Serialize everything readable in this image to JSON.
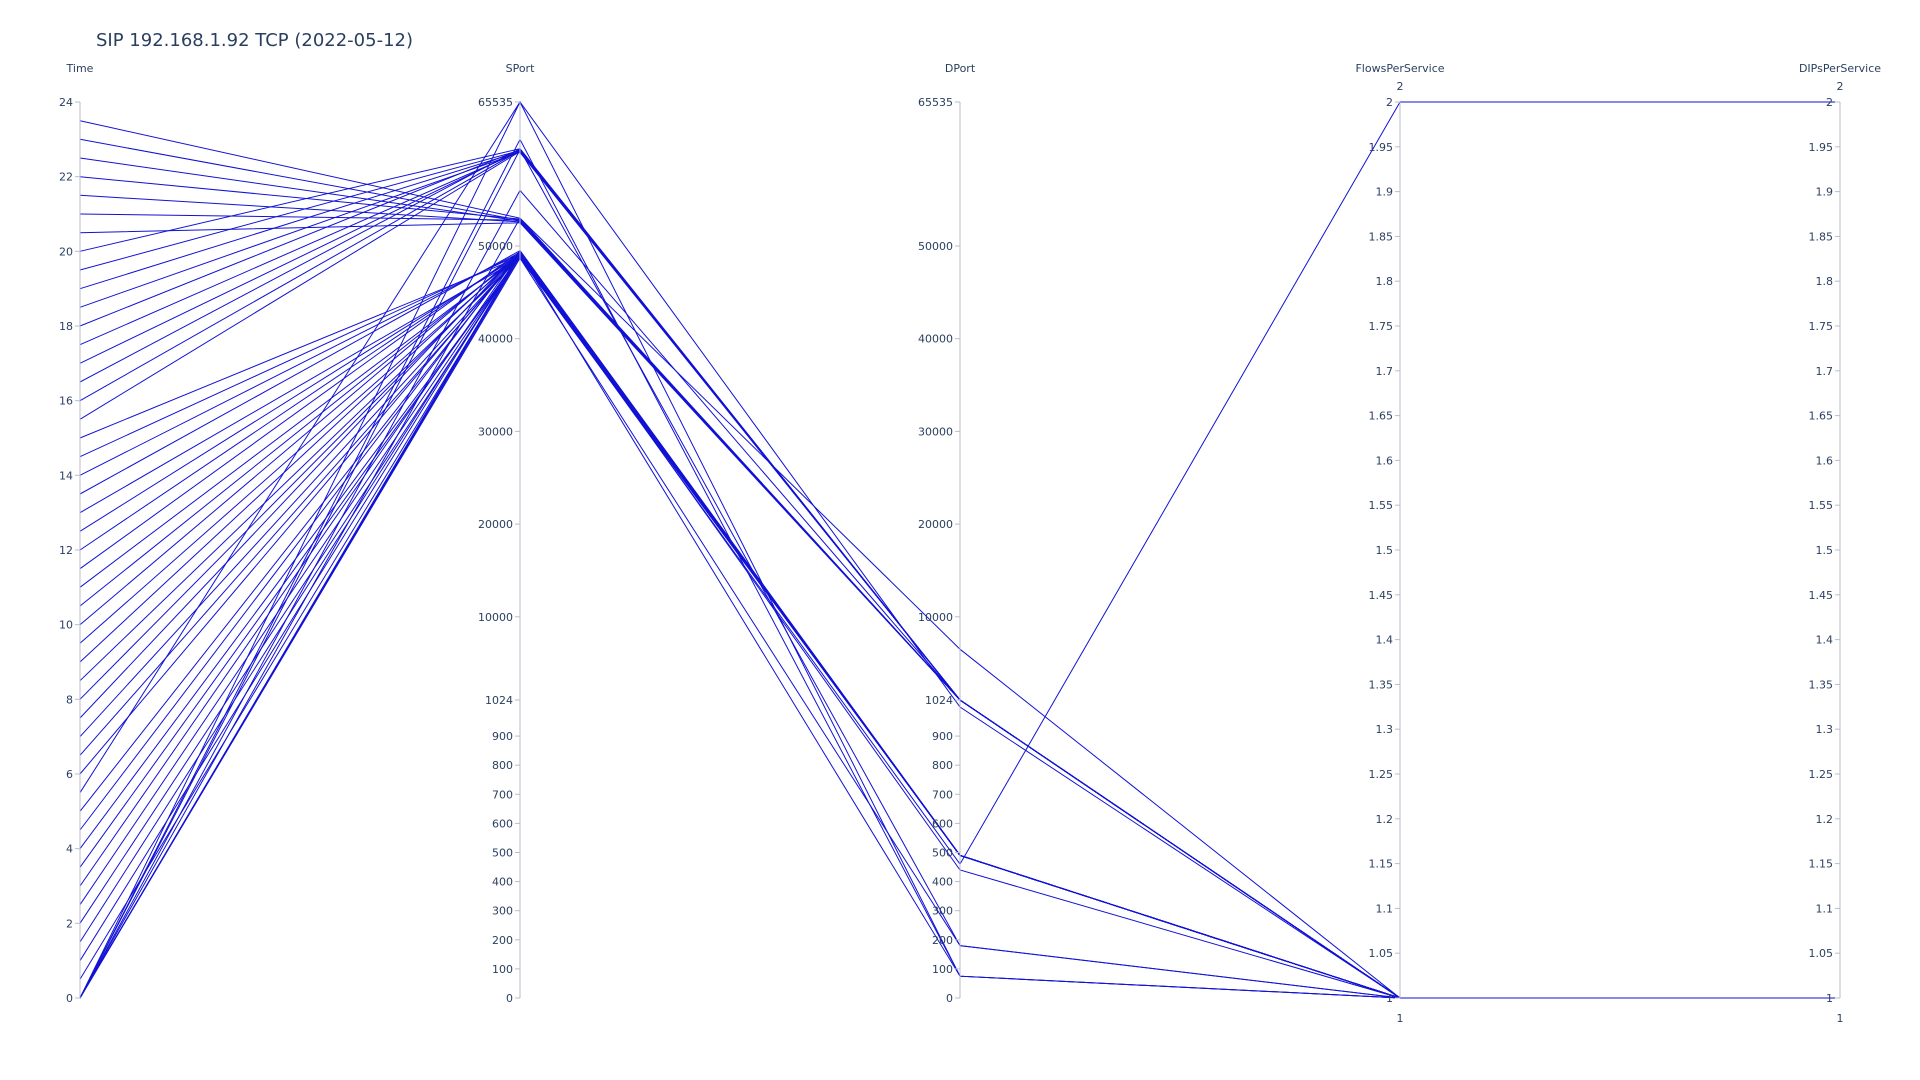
{
  "title": "SIP 192.168.1.92 TCP (2022-05-12)",
  "chart_data": {
    "type": "parallel_coordinates",
    "title": "SIP 192.168.1.92 TCP (2022-05-12)",
    "line_color": "#1212d6",
    "dimensions": [
      {
        "name": "Time",
        "ticks": [
          "0",
          "2",
          "4",
          "6",
          "8",
          "10",
          "12",
          "14",
          "16",
          "18",
          "20",
          "22",
          "24"
        ],
        "range": [
          0,
          24
        ]
      },
      {
        "name": "SPort",
        "ticks": [
          "0",
          "100",
          "200",
          "300",
          "400",
          "500",
          "600",
          "700",
          "800",
          "900",
          "1024",
          "10000",
          "20000",
          "30000",
          "40000",
          "50000",
          "65535"
        ],
        "range": [
          0,
          65535
        ]
      },
      {
        "name": "DPort",
        "ticks": [
          "0",
          "100",
          "200",
          "300",
          "400",
          "500",
          "600",
          "700",
          "800",
          "900",
          "1024",
          "10000",
          "20000",
          "30000",
          "40000",
          "50000",
          "65535"
        ],
        "range": [
          0,
          65535
        ]
      },
      {
        "name": "FlowsPerService",
        "ticks": [
          "1",
          "1.05",
          "1.1",
          "1.15",
          "1.2",
          "1.25",
          "1.3",
          "1.35",
          "1.4",
          "1.45",
          "1.5",
          "1.55",
          "1.6",
          "1.65",
          "1.7",
          "1.75",
          "1.8",
          "1.85",
          "1.9",
          "1.95",
          "2"
        ],
        "range": [
          1,
          2
        ],
        "range_labels": [
          "1",
          "2"
        ]
      },
      {
        "name": "DIPsPerService",
        "ticks": [
          "1",
          "1.05",
          "1.1",
          "1.15",
          "1.2",
          "1.25",
          "1.3",
          "1.35",
          "1.4",
          "1.45",
          "1.5",
          "1.55",
          "1.6",
          "1.65",
          "1.7",
          "1.75",
          "1.8",
          "1.85",
          "1.9",
          "1.95",
          "2"
        ],
        "range": [
          1,
          2
        ],
        "range_labels": [
          "1",
          "2"
        ]
      }
    ],
    "records": [
      [
        23.5,
        53000,
        1024,
        1,
        1
      ],
      [
        23.0,
        52800,
        1024,
        1,
        1
      ],
      [
        22.5,
        52700,
        1024,
        1,
        1
      ],
      [
        22.0,
        52900,
        1024,
        1,
        1
      ],
      [
        21.5,
        52600,
        1024,
        1,
        1
      ],
      [
        21.0,
        52800,
        1024,
        1,
        1
      ],
      [
        20.5,
        52500,
        1024,
        1,
        1
      ],
      [
        20.0,
        60500,
        1024,
        1,
        1
      ],
      [
        19.5,
        60300,
        1024,
        1,
        1
      ],
      [
        19.0,
        60200,
        1024,
        1,
        1
      ],
      [
        18.5,
        60100,
        1024,
        1,
        1
      ],
      [
        18.0,
        60400,
        1024,
        1,
        1
      ],
      [
        17.5,
        60200,
        1024,
        1,
        1
      ],
      [
        17.0,
        60300,
        1024,
        1,
        1
      ],
      [
        16.5,
        60500,
        1024,
        1,
        1
      ],
      [
        16.0,
        60300,
        1024,
        1,
        1
      ],
      [
        15.5,
        60200,
        1024,
        1,
        1
      ],
      [
        15.0,
        48800,
        490,
        1,
        1
      ],
      [
        14.5,
        49100,
        490,
        1,
        1
      ],
      [
        14.0,
        49300,
        490,
        1,
        1
      ],
      [
        13.5,
        49500,
        490,
        1,
        1
      ],
      [
        13.0,
        48700,
        490,
        1,
        1
      ],
      [
        12.5,
        49000,
        490,
        1,
        1
      ],
      [
        12.0,
        49200,
        490,
        1,
        1
      ],
      [
        11.5,
        49400,
        490,
        1,
        1
      ],
      [
        11.0,
        48900,
        490,
        1,
        1
      ],
      [
        10.5,
        49100,
        490,
        1,
        1
      ],
      [
        10.0,
        49300,
        490,
        1,
        1
      ],
      [
        9.5,
        49000,
        490,
        1,
        1
      ],
      [
        9.0,
        49200,
        490,
        1,
        1
      ],
      [
        8.5,
        48800,
        490,
        1,
        1
      ],
      [
        8.0,
        49100,
        490,
        1,
        1
      ],
      [
        7.5,
        49400,
        490,
        1,
        1
      ],
      [
        7.0,
        49000,
        490,
        1,
        1
      ],
      [
        6.5,
        48900,
        490,
        1,
        1
      ],
      [
        6.0,
        49200,
        490,
        1,
        1
      ],
      [
        5.5,
        65535,
        75,
        1,
        1
      ],
      [
        5.0,
        49300,
        490,
        1,
        1
      ],
      [
        4.5,
        49500,
        490,
        1,
        1
      ],
      [
        4.0,
        48800,
        490,
        1,
        1
      ],
      [
        3.5,
        49000,
        490,
        1,
        1
      ],
      [
        3.0,
        49400,
        490,
        1,
        1
      ],
      [
        2.5,
        49100,
        490,
        1,
        1
      ],
      [
        2.0,
        48900,
        490,
        1,
        1
      ],
      [
        1.5,
        49200,
        490,
        1,
        1
      ],
      [
        1.0,
        49300,
        490,
        1,
        1
      ],
      [
        0.5,
        49000,
        490,
        1,
        1
      ],
      [
        0.0,
        65535,
        1000,
        1,
        1
      ],
      [
        0.0,
        49100,
        75,
        1,
        1
      ],
      [
        0.0,
        48900,
        460,
        2,
        2
      ],
      [
        0.0,
        49200,
        440,
        1,
        1
      ],
      [
        0.0,
        53000,
        6500,
        1,
        1
      ],
      [
        0.0,
        60400,
        180,
        1,
        1
      ],
      [
        0.0,
        48700,
        180,
        1,
        1
      ],
      [
        0.0,
        61500,
        75,
        1,
        1
      ],
      [
        0.0,
        56000,
        1024,
        1,
        1
      ]
    ]
  }
}
